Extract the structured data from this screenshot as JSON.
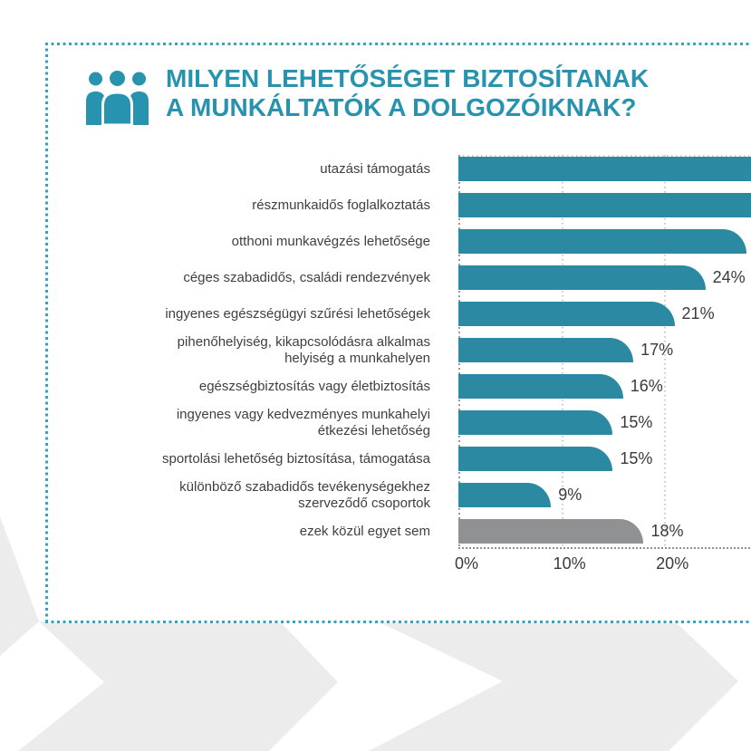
{
  "page": {
    "background_color": "#ffffff",
    "chevron_color": "#ececec"
  },
  "card": {
    "border_color": "#36a2c0"
  },
  "header": {
    "icon": "people-group-icon",
    "icon_color": "#2793ae",
    "title_line1": "MILYEN LEHETŐSÉGET BIZTOSÍTANAK",
    "title_line2": "A MUNKÁLTATÓK A DOLGOZÓIKNAK?",
    "title_color": "#2793ae"
  },
  "chart_data": {
    "type": "bar",
    "orientation": "horizontal",
    "bar_color": "#2b8aa2",
    "none_bar_color": "#8f9192",
    "grid": "dotted vertical gridlines at ticks, dotted plot top line and axis baseline",
    "legend": "none",
    "axis": {
      "ticks": [
        "0%",
        "10%",
        "20%"
      ],
      "tick_values": [
        0,
        10,
        20
      ],
      "xlim_visible": [
        0,
        29
      ]
    },
    "bars": [
      {
        "label": "utazási támogatás",
        "label_lines": [
          "utazási támogatás"
        ],
        "value_pct": 33,
        "value_label": "",
        "clipped_at_right_edge": true
      },
      {
        "label": "részmunkaidős foglalkoztatás",
        "label_lines": [
          "részmunkaidős foglalkoztatás"
        ],
        "value_pct": 32,
        "value_label": "",
        "clipped_at_right_edge": true
      },
      {
        "label": "otthoni munkavégzés lehetősége",
        "label_lines": [
          "otthoni munkavégzés lehetősége"
        ],
        "value_pct": 28,
        "value_label": "",
        "clipped_at_right_edge": true
      },
      {
        "label": "céges szabadidős, családi rendezvények",
        "label_lines": [
          "céges szabadidős, családi rendezvények"
        ],
        "value_pct": 24,
        "value_label": "24%"
      },
      {
        "label": "ingyenes egészségügyi szűrési lehetőségek",
        "label_lines": [
          "ingyenes egészségügyi szűrési lehetőségek"
        ],
        "value_pct": 21,
        "value_label": "21%"
      },
      {
        "label": "pihenőhelyiség, kikapcsolódásra alkalmas helyiség a munkahelyen",
        "label_lines": [
          "pihenőhelyiség, kikapcsolódásra alkalmas",
          "helyiség a munkahelyen"
        ],
        "value_pct": 17,
        "value_label": "17%"
      },
      {
        "label": "egészségbiztosítás vagy életbiztosítás",
        "label_lines": [
          "egészségbiztosítás vagy életbiztosítás"
        ],
        "value_pct": 16,
        "value_label": "16%"
      },
      {
        "label": "ingyenes vagy kedvezményes munkahelyi étkezési lehetőség",
        "label_lines": [
          "ingyenes vagy kedvezményes munkahelyi",
          "étkezési lehetőség"
        ],
        "value_pct": 15,
        "value_label": "15%"
      },
      {
        "label": "sportolási lehetőség biztosítása, támogatása",
        "label_lines": [
          "sportolási lehetőség biztosítása, támogatása"
        ],
        "value_pct": 15,
        "value_label": "15%"
      },
      {
        "label": "különböző szabadidős tevékenységekhez szerveződő csoportok",
        "label_lines": [
          "különböző szabadidős tevékenységekhez",
          "szerveződő csoportok"
        ],
        "value_pct": 9,
        "value_label": "9%"
      },
      {
        "label": "ezek közül egyet sem",
        "label_lines": [
          "ezek közül egyet sem"
        ],
        "value_pct": 18,
        "value_label": "18%",
        "is_none_option": true
      }
    ]
  }
}
